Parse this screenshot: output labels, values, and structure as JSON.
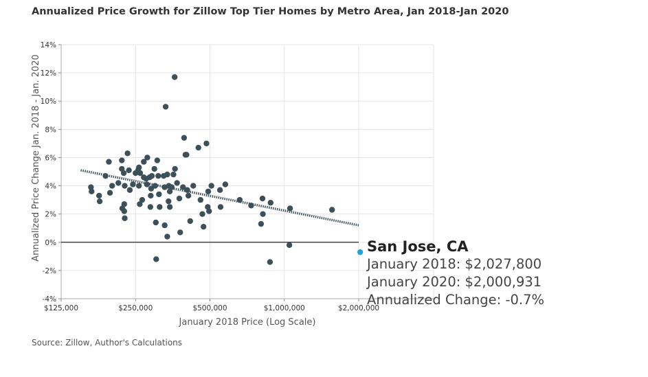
{
  "header": {
    "title": "Annualized Price Growth for Zillow Top Tier Homes by Metro Area, Jan 2018-Jan 2020"
  },
  "footer": {
    "source": "Source: Zillow, Author's Calculations"
  },
  "tooltip": {
    "title": "San Jose, CA",
    "line1": "January 2018: $2,027,800",
    "line2": "January 2020: $2,000,931",
    "line3": "Annualized Change: -0.7%"
  },
  "colors": {
    "points": "#3d5059",
    "highlight": "#1fa3e0",
    "trend": "#3d5059",
    "grid": "#e6e6e6",
    "zero_line": "#222222"
  },
  "chart_data": {
    "type": "scatter",
    "title": "Annualized Price Growth for Zillow Top Tier Homes by Metro Area, Jan 2018-Jan 2020",
    "xlabel": "January 2018 Price (Log Scale)",
    "ylabel": "Annualized Price Change Jan. 2018 - Jan. 2020",
    "x_scale": "log",
    "xlim": [
      125000,
      2000000
    ],
    "ylim": [
      -4,
      14
    ],
    "x_ticks": [
      125000,
      250000,
      500000,
      1000000,
      2000000
    ],
    "x_tick_labels": [
      "$125,000",
      "$250,000",
      "$500,000",
      "$1,000,000",
      "$2,000,000"
    ],
    "y_ticks": [
      -4,
      -2,
      0,
      2,
      4,
      6,
      8,
      10,
      12,
      14
    ],
    "y_tick_labels": [
      "-4%",
      "-2%",
      "0%",
      "2%",
      "4%",
      "6%",
      "8%",
      "10%",
      "12%",
      "14%"
    ],
    "grid": true,
    "trend_line": {
      "x": [
        150000,
        2000000
      ],
      "y": [
        5.1,
        1.2
      ],
      "style": "dotted"
    },
    "highlight": {
      "name": "San Jose, CA",
      "x": 2027800,
      "y": -0.7
    },
    "points": [
      [
        165000,
        3.9
      ],
      [
        166000,
        3.6
      ],
      [
        178000,
        3.3
      ],
      [
        179000,
        2.9
      ],
      [
        189000,
        4.7
      ],
      [
        195000,
        5.7
      ],
      [
        197000,
        3.5
      ],
      [
        201000,
        4.0
      ],
      [
        213000,
        4.2
      ],
      [
        220000,
        5.8
      ],
      [
        220000,
        5.2
      ],
      [
        224000,
        4.9
      ],
      [
        221000,
        2.4
      ],
      [
        225000,
        2.2
      ],
      [
        226000,
        1.7
      ],
      [
        225000,
        2.7
      ],
      [
        226000,
        4.0
      ],
      [
        232000,
        6.3
      ],
      [
        235000,
        5.1
      ],
      [
        237000,
        3.7
      ],
      [
        244000,
        4.1
      ],
      [
        250000,
        4.9
      ],
      [
        256000,
        5.1
      ],
      [
        258000,
        5.3
      ],
      [
        258000,
        4.0
      ],
      [
        261000,
        4.9
      ],
      [
        260000,
        2.7
      ],
      [
        266000,
        3.0
      ],
      [
        270000,
        5.7
      ],
      [
        270000,
        4.6
      ],
      [
        276000,
        4.5
      ],
      [
        278000,
        4.1
      ],
      [
        279000,
        6.0
      ],
      [
        285000,
        4.6
      ],
      [
        287000,
        2.5
      ],
      [
        288000,
        3.3
      ],
      [
        289000,
        3.8
      ],
      [
        291000,
        4.7
      ],
      [
        298000,
        5.2
      ],
      [
        300000,
        4.0
      ],
      [
        302000,
        1.4
      ],
      [
        303000,
        -1.2
      ],
      [
        306000,
        5.8
      ],
      [
        309000,
        4.7
      ],
      [
        311000,
        3.4
      ],
      [
        313000,
        2.5
      ],
      [
        325000,
        4.7
      ],
      [
        328000,
        1.2
      ],
      [
        328000,
        3.9
      ],
      [
        331000,
        9.6
      ],
      [
        336000,
        0.4
      ],
      [
        336000,
        4.8
      ],
      [
        340000,
        2.9
      ],
      [
        341000,
        4.0
      ],
      [
        344000,
        3.6
      ],
      [
        344000,
        2.5
      ],
      [
        350000,
        3.9
      ],
      [
        356000,
        4.8
      ],
      [
        360000,
        11.7
      ],
      [
        361000,
        5.2
      ],
      [
        368000,
        4.2
      ],
      [
        376000,
        3.1
      ],
      [
        379000,
        0.7
      ],
      [
        389000,
        3.9
      ],
      [
        393000,
        7.4
      ],
      [
        398000,
        6.2
      ],
      [
        402000,
        6.2
      ],
      [
        405000,
        3.7
      ],
      [
        409000,
        3.3
      ],
      [
        416000,
        1.5
      ],
      [
        428000,
        4.0
      ],
      [
        449000,
        6.7
      ],
      [
        458000,
        3.0
      ],
      [
        466000,
        2.0
      ],
      [
        471000,
        1.1
      ],
      [
        484000,
        7.0
      ],
      [
        490000,
        2.5
      ],
      [
        492000,
        3.6
      ],
      [
        496000,
        2.2
      ],
      [
        507000,
        4.0
      ],
      [
        549000,
        3.7
      ],
      [
        552000,
        2.5
      ],
      [
        577000,
        4.1
      ],
      [
        660000,
        3.0
      ],
      [
        734000,
        2.6
      ],
      [
        805000,
        1.3
      ],
      [
        816000,
        3.1
      ],
      [
        819000,
        2.0
      ],
      [
        875000,
        -1.4
      ],
      [
        880000,
        2.8
      ],
      [
        1048000,
        -0.2
      ],
      [
        1055000,
        2.4
      ],
      [
        1560000,
        2.3
      ]
    ]
  }
}
